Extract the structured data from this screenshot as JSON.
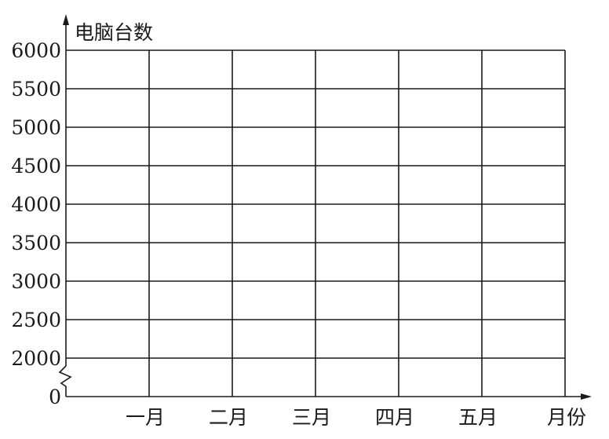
{
  "chart_data": {
    "type": "line",
    "title": "",
    "ylabel": "电脑台数",
    "xlabel": "月份",
    "categories": [
      "一月",
      "二月",
      "三月",
      "四月",
      "五月"
    ],
    "y_ticks": [
      0,
      2000,
      2500,
      3000,
      3500,
      4000,
      4500,
      5000,
      5500,
      6000
    ],
    "y_tick_labels": [
      "0",
      "2000",
      "2500",
      "3000",
      "3500",
      "4000",
      "4500",
      "5000",
      "5500",
      "6000"
    ],
    "ylim": [
      0,
      6000
    ],
    "axis_break": "between 0 and 2000",
    "grid": true,
    "series": [],
    "colors": {
      "ink": "#1a1a1a",
      "background": "#ffffff"
    }
  }
}
